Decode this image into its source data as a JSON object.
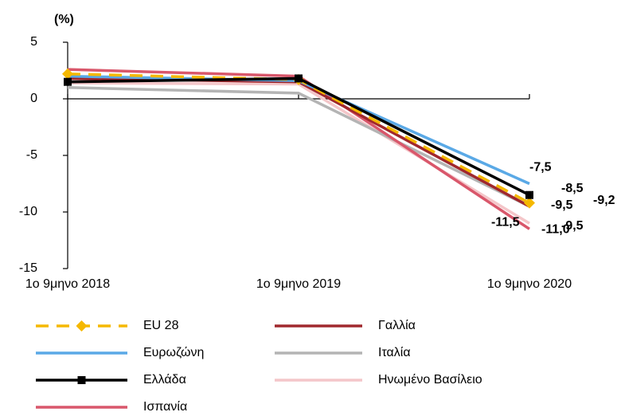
{
  "chart_data": {
    "type": "line",
    "ylabel": "(%)",
    "categories": [
      "1ο 9μηνο 2018",
      "1ο 9μηνο 2019",
      "1ο 9μηνο 2020"
    ],
    "ylim": [
      -15,
      5
    ],
    "yticks": [
      -15,
      -10,
      -5,
      0,
      5
    ],
    "series": [
      {
        "name": "EU 28",
        "color": "#f5b800",
        "dash": true,
        "marker": "diamond",
        "values": [
          2.2,
          1.7,
          -9.2
        ],
        "value_labels": [
          null,
          null,
          "-9,2"
        ]
      },
      {
        "name": "Ευρωζώνη",
        "color": "#5aa9e6",
        "values": [
          2.0,
          1.6,
          -7.5
        ],
        "value_labels": [
          null,
          null,
          "-7,5"
        ]
      },
      {
        "name": "Ελλάδα",
        "color": "#000000",
        "marker": "square",
        "values": [
          1.5,
          1.8,
          -8.5
        ],
        "value_labels": [
          null,
          null,
          "-8,5"
        ]
      },
      {
        "name": "Ισπανία",
        "color": "#d9576b",
        "values": [
          2.6,
          2.0,
          -11.5
        ],
        "value_labels": [
          null,
          null,
          "-11,5"
        ]
      },
      {
        "name": "Γαλλία",
        "color": "#a0282d",
        "values": [
          1.8,
          1.5,
          -9.5
        ],
        "value_labels": [
          null,
          null,
          "-9,5"
        ]
      },
      {
        "name": "Ιταλία",
        "color": "#b4b4b4",
        "values": [
          1.0,
          0.5,
          -9.5
        ],
        "value_labels": [
          null,
          null,
          "-9,5"
        ]
      },
      {
        "name": "Ηνωμένο Βασίλειο",
        "color": "#f4c6c9",
        "values": [
          1.4,
          1.3,
          -11.0
        ],
        "value_labels": [
          null,
          null,
          "-11,0"
        ]
      }
    ]
  }
}
